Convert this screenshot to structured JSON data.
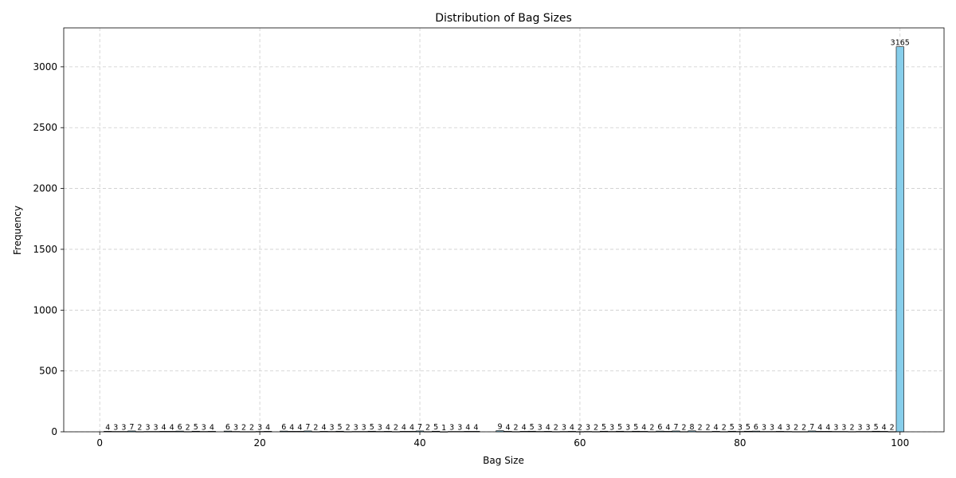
{
  "chart_data": {
    "type": "bar",
    "title": "Distribution of Bag Sizes",
    "xlabel": "Bag Size",
    "ylabel": "Frequency",
    "xlim": [
      -4.5,
      105.5
    ],
    "ylim": [
      0,
      3320
    ],
    "xticks": [
      0,
      20,
      40,
      60,
      80,
      100
    ],
    "yticks": [
      0,
      500,
      1000,
      1500,
      2000,
      2500,
      3000
    ],
    "grid": true,
    "bar_color": "#87ceeb",
    "bar_edge_color": "#000000",
    "x": [
      1,
      2,
      3,
      4,
      5,
      6,
      7,
      8,
      9,
      10,
      11,
      12,
      13,
      14,
      16,
      17,
      18,
      19,
      20,
      21,
      23,
      24,
      25,
      26,
      27,
      28,
      29,
      30,
      31,
      32,
      33,
      34,
      35,
      36,
      37,
      38,
      39,
      40,
      41,
      42,
      43,
      44,
      45,
      46,
      47,
      50,
      51,
      52,
      53,
      54,
      55,
      56,
      57,
      58,
      59,
      60,
      61,
      62,
      63,
      64,
      65,
      66,
      67,
      68,
      69,
      70,
      71,
      72,
      73,
      74,
      75,
      76,
      77,
      78,
      79,
      80,
      81,
      82,
      83,
      84,
      85,
      86,
      87,
      88,
      89,
      90,
      91,
      92,
      93,
      94,
      95,
      96,
      97,
      98,
      99,
      100
    ],
    "values": [
      4,
      3,
      3,
      7,
      2,
      3,
      3,
      4,
      4,
      6,
      2,
      5,
      3,
      4,
      6,
      3,
      2,
      2,
      3,
      4,
      6,
      4,
      4,
      7,
      2,
      4,
      3,
      5,
      2,
      3,
      3,
      5,
      3,
      4,
      2,
      4,
      4,
      7,
      2,
      5,
      1,
      3,
      3,
      4,
      4,
      9,
      4,
      2,
      4,
      5,
      3,
      4,
      2,
      3,
      4,
      2,
      3,
      2,
      5,
      3,
      5,
      3,
      5,
      4,
      2,
      6,
      4,
      7,
      2,
      8,
      2,
      2,
      4,
      2,
      5,
      3,
      5,
      6,
      3,
      3,
      4,
      3,
      2,
      2,
      7,
      4,
      4,
      3,
      3,
      2,
      3,
      3,
      5,
      4,
      2,
      3165
    ]
  }
}
